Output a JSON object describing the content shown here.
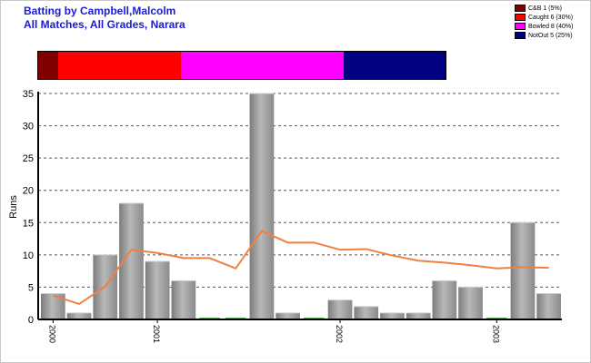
{
  "title_line1": "Batting by Campbell,Malcolm",
  "title_line2": "All Matches, All Grades, Narara",
  "legend": [
    {
      "label": "C&B 1 (5%)",
      "color": "#800000",
      "count": 1
    },
    {
      "label": "Caught 6 (30%)",
      "color": "#ff0000",
      "count": 6
    },
    {
      "label": "Bowled 8 (40%)",
      "color": "#ff00ff",
      "count": 8
    },
    {
      "label": "NotOut 5 (25%)",
      "color": "#000080",
      "count": 5
    }
  ],
  "chart_data": {
    "type": "bar",
    "ylabel": "Runs",
    "ylim": [
      0,
      35
    ],
    "yticks": [
      0,
      5,
      10,
      15,
      20,
      25,
      30,
      35
    ],
    "grid": true,
    "values": [
      4,
      1,
      10,
      18,
      9,
      6,
      0,
      0,
      35,
      1,
      0,
      3,
      2,
      1,
      1,
      6,
      5,
      0,
      15,
      4
    ],
    "average": [
      3.7,
      2.4,
      5.1,
      10.8,
      10.3,
      9.5,
      9.5,
      7.9,
      13.7,
      11.9,
      11.9,
      10.8,
      10.9,
      9.9,
      9.1,
      8.8,
      8.4,
      7.9,
      8.1,
      8.0
    ],
    "x_tick_labels": [
      {
        "label": "2000",
        "index": 0
      },
      {
        "label": "2001",
        "index": 4
      },
      {
        "label": "2002",
        "index": 11
      },
      {
        "label": "2003",
        "index": 17
      }
    ],
    "bar_color": "#a8a8a8",
    "line_color": "#f08040"
  }
}
